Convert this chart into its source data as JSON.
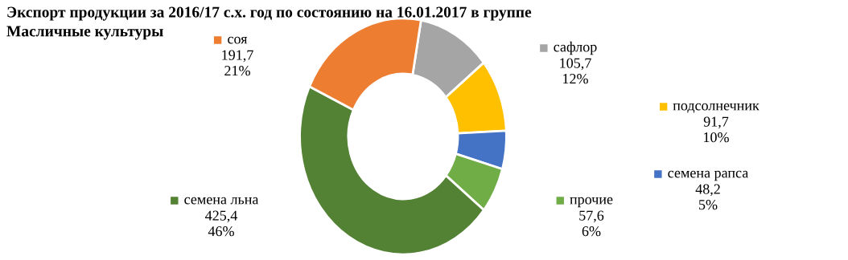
{
  "chart_data": {
    "type": "donut",
    "title": "Экспорт продукции за 2016/17 с.х. год по состоянию на 16.01.2017 в группе\nМасличные культуры",
    "categories": [
      "сафлор",
      "подсолнечник",
      "семена рапса",
      "прочие",
      "семена льна",
      "соя"
    ],
    "values": [
      105.7,
      91.7,
      48.2,
      57.6,
      425.4,
      191.7
    ],
    "colors": [
      "#a5a5a5",
      "#ffc000",
      "#4472c4",
      "#70ad47",
      "#548235",
      "#ed7d31"
    ],
    "value_labels": [
      "105,7\n12%",
      "91,7\n10%",
      "48,2\n5%",
      "57,6\n6%",
      "425,4\n46%",
      "191,7\n21%"
    ],
    "legend": "right"
  }
}
